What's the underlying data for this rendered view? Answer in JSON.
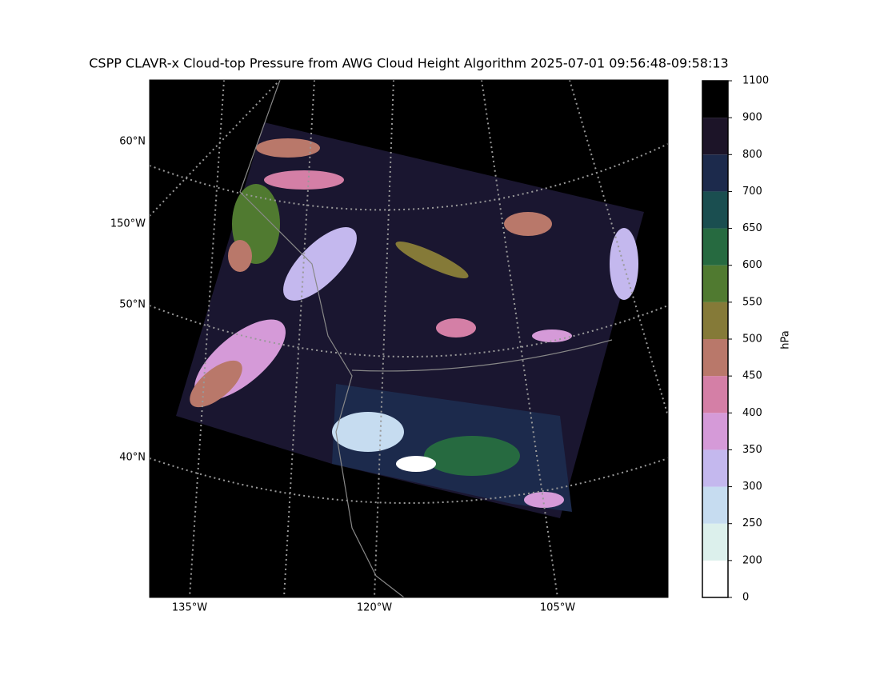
{
  "title": "CSPP CLAVR-x Cloud-top Pressure from AWG Cloud Height Algorithm 2025-07-01 09:56:48-09:58:13",
  "map": {
    "left_labels": [
      "60°N",
      "150°W",
      "50°N",
      "40°N"
    ],
    "bottom_labels": [
      "135°W",
      "120°W",
      "105°W"
    ]
  },
  "colorbar": {
    "label": "hPa",
    "ticks": [
      0,
      200,
      250,
      300,
      350,
      400,
      450,
      500,
      550,
      600,
      650,
      700,
      800,
      900,
      1100
    ],
    "colors": [
      "#ffffff",
      "#dcf0ec",
      "#c6dcf0",
      "#c4b8ee",
      "#d59ad8",
      "#d47fa6",
      "#b9786a",
      "#857a38",
      "#507a30",
      "#266a40",
      "#1a4e50",
      "#1c2a4c",
      "#1c1428",
      "#000000"
    ]
  }
}
